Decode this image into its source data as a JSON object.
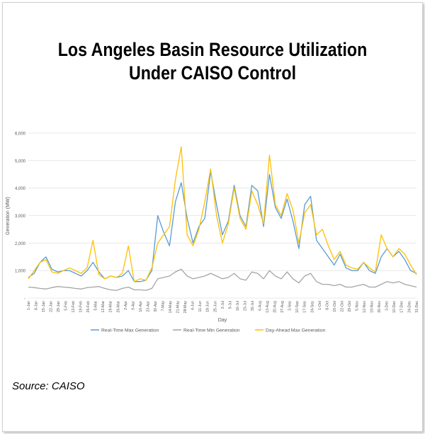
{
  "title_lines": [
    "Los Angeles Basin Resource Utilization",
    "Under CAISO Control"
  ],
  "source": "Source: CAISO",
  "chart_data": {
    "type": "line",
    "title": "Los Angeles Basin Resource Utilization Under CAISO Control",
    "xlabel": "Day",
    "ylabel": "Generation (MW)",
    "ylim": [
      0,
      6000
    ],
    "yticks": [
      0,
      1000,
      2000,
      3000,
      4000,
      5000,
      6000
    ],
    "ytick_labels": [
      "-",
      "1,000",
      "2,000",
      "3,000",
      "4,000",
      "5,000",
      "6,000"
    ],
    "x_tick_labels": [
      "1-Jan",
      "8-Jan",
      "15-Jan",
      "22-Jan",
      "29-Jan",
      "5-Feb",
      "12-Feb",
      "19-Feb",
      "26-Feb",
      "5-Mar",
      "12-Mar",
      "19-Mar",
      "26-Mar",
      "2-Apr",
      "9-Apr",
      "16-Apr",
      "23-Apr",
      "30-Apr",
      "7-May",
      "14-May",
      "21-May",
      "28-May",
      "4-Jun",
      "11-Jun",
      "18-Jun",
      "25-Jun",
      "2-Jul",
      "9-Jul",
      "16-Jul",
      "23-Jul",
      "30-Jul",
      "6-Aug",
      "13-Aug",
      "20-Aug",
      "27-Aug",
      "3-Sep",
      "10-Sep",
      "17-Sep",
      "24-Sep",
      "1-Oct",
      "8-Oct",
      "15-Oct",
      "22-Oct",
      "29-Oct",
      "5-Nov",
      "12-Nov",
      "19-Nov",
      "26-Nov",
      "3-Dec",
      "10-Dec",
      "17-Dec",
      "24-Dec",
      "31-Dec"
    ],
    "series": [
      {
        "name": "Real-Time Max Generation",
        "color": "#5b9bd5",
        "values": [
          750,
          900,
          1300,
          1500,
          1050,
          950,
          1000,
          1000,
          900,
          800,
          1000,
          1300,
          950,
          700,
          800,
          750,
          800,
          1000,
          600,
          600,
          650,
          1000,
          3000,
          2400,
          1900,
          3500,
          4200,
          2900,
          2000,
          2600,
          2900,
          4600,
          3400,
          2300,
          2800,
          4100,
          3000,
          2600,
          4100,
          3900,
          2600,
          4500,
          3300,
          2900,
          3600,
          2800,
          1800,
          3400,
          3700,
          2100,
          1800,
          1500,
          1200,
          1600,
          1100,
          1000,
          1000,
          1300,
          1000,
          900,
          1500,
          1800,
          1500,
          1700,
          1400,
          1000,
          900
        ]
      },
      {
        "name": "Real-Time Min Generation",
        "color": "#a5a5a5",
        "values": [
          400,
          380,
          350,
          330,
          380,
          420,
          400,
          380,
          350,
          330,
          380,
          400,
          420,
          350,
          300,
          280,
          350,
          400,
          300,
          300,
          280,
          350,
          700,
          750,
          800,
          950,
          1050,
          800,
          700,
          750,
          800,
          900,
          800,
          700,
          750,
          900,
          700,
          650,
          950,
          900,
          700,
          1000,
          800,
          700,
          950,
          700,
          550,
          800,
          900,
          600,
          500,
          500,
          450,
          500,
          400,
          400,
          450,
          500,
          400,
          400,
          500,
          600,
          550,
          600,
          500,
          450,
          400
        ]
      },
      {
        "name": "Day-Ahead Max Generation",
        "color": "#ffc000",
        "values": [
          700,
          1000,
          1300,
          1400,
          950,
          900,
          1000,
          1100,
          1000,
          900,
          1100,
          2100,
          850,
          700,
          800,
          750,
          900,
          1900,
          600,
          700,
          650,
          1100,
          2000,
          2300,
          2600,
          4300,
          5500,
          2300,
          1900,
          2500,
          3500,
          4700,
          3000,
          2000,
          2700,
          4000,
          2900,
          2500,
          3900,
          3400,
          2700,
          5200,
          3400,
          3000,
          3800,
          3200,
          2000,
          3100,
          3400,
          2300,
          2500,
          1900,
          1400,
          1700,
          1200,
          1100,
          1050,
          1300,
          1100,
          950,
          2300,
          1800,
          1500,
          1800,
          1600,
          1200,
          850
        ]
      }
    ],
    "legend_position": "bottom"
  }
}
